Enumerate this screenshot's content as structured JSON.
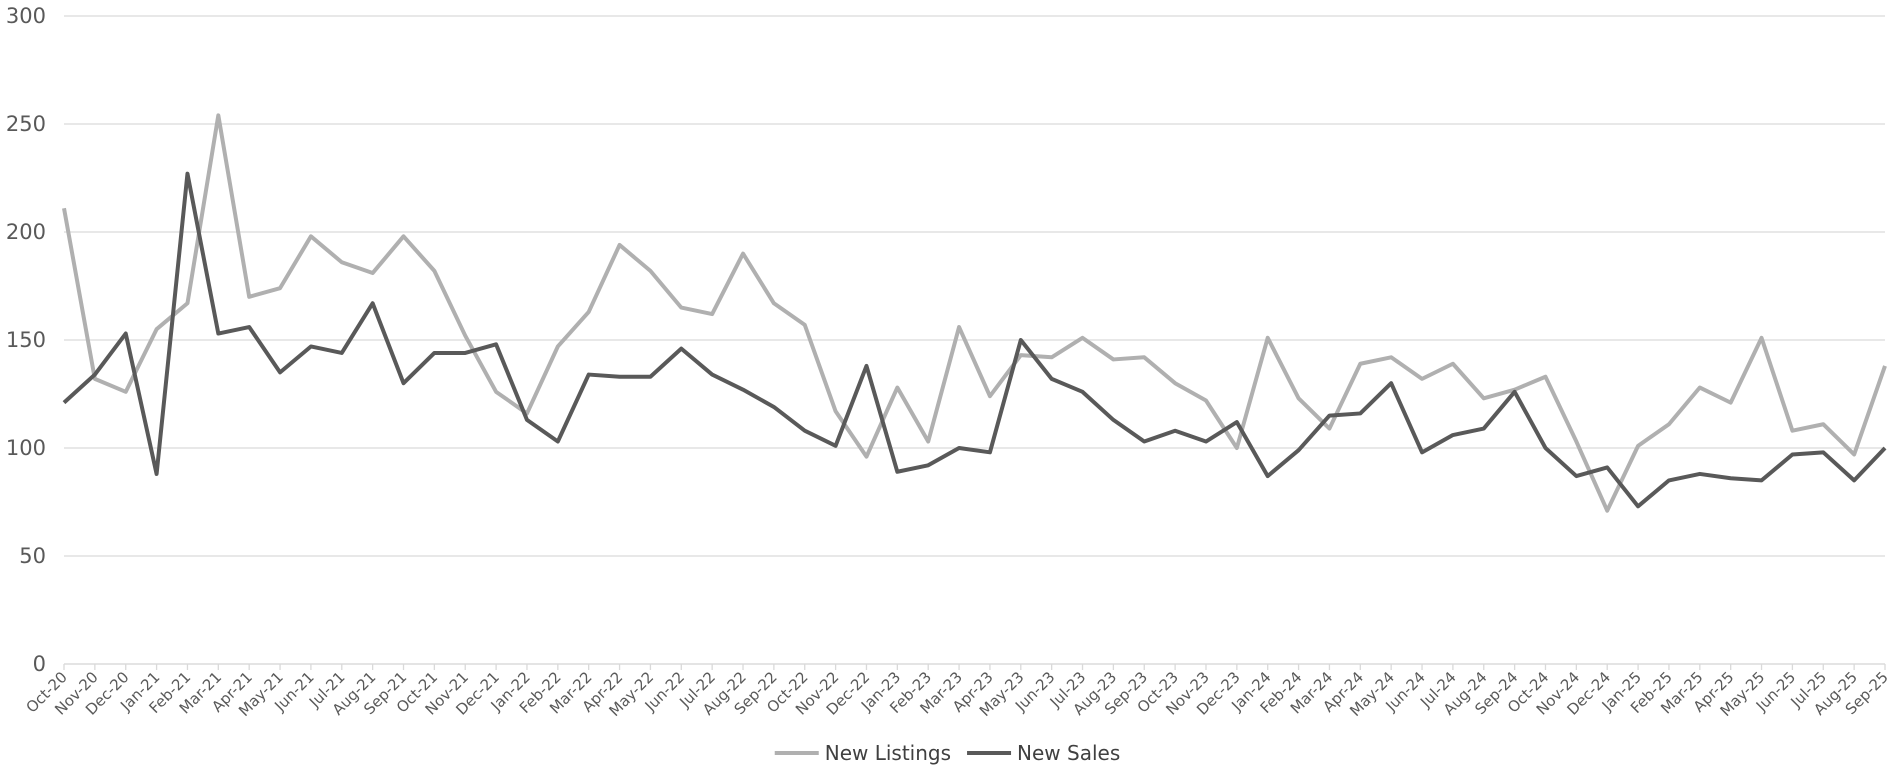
{
  "chart_data": {
    "type": "line",
    "categories": [
      "Oct-20",
      "Nov-20",
      "Dec-20",
      "Jan-21",
      "Feb-21",
      "Mar-21",
      "Apr-21",
      "May-21",
      "Jun-21",
      "Jul-21",
      "Aug-21",
      "Sep-21",
      "Oct-21",
      "Nov-21",
      "Dec-21",
      "Jan-22",
      "Feb-22",
      "Mar-22",
      "Apr-22",
      "May-22",
      "Jun-22",
      "Jul-22",
      "Aug-22",
      "Sep-22",
      "Oct-22",
      "Nov-22",
      "Dec-22",
      "Jan-23",
      "Feb-23",
      "Mar-23",
      "Apr-23",
      "May-23",
      "Jun-23",
      "Jul-23",
      "Aug-23",
      "Sep-23",
      "Oct-23",
      "Nov-23",
      "Dec-23",
      "Jan-24",
      "Feb-24",
      "Mar-24",
      "Apr-24",
      "May-24",
      "Jun-24",
      "Jul-24",
      "Aug-24",
      "Sep-24",
      "Oct-24",
      "Nov-24",
      "Dec-24",
      "Jan-25",
      "Feb-25",
      "Mar-25",
      "Apr-25",
      "May-25",
      "Jun-25",
      "Jul-25",
      "Aug-25",
      "Sep-25"
    ],
    "series": [
      {
        "name": "New Listings",
        "color": "#b0b0b0",
        "values": [
          211,
          132,
          126,
          155,
          167,
          254,
          170,
          174,
          198,
          186,
          181,
          198,
          182,
          152,
          126,
          116,
          147,
          163,
          194,
          182,
          165,
          162,
          190,
          167,
          157,
          117,
          96,
          128,
          103,
          156,
          124,
          143,
          142,
          151,
          141,
          142,
          130,
          122,
          100,
          151,
          123,
          109,
          139,
          142,
          132,
          139,
          123,
          127,
          133,
          103,
          71,
          101,
          111,
          128,
          121,
          151,
          108,
          111,
          97,
          138
        ]
      },
      {
        "name": "New Sales",
        "color": "#595959",
        "values": [
          121,
          134,
          153,
          88,
          227,
          153,
          156,
          135,
          147,
          144,
          167,
          130,
          144,
          144,
          148,
          113,
          103,
          134,
          133,
          133,
          146,
          134,
          127,
          119,
          108,
          101,
          138,
          89,
          92,
          100,
          98,
          150,
          132,
          126,
          113,
          103,
          108,
          103,
          112,
          87,
          99,
          115,
          116,
          130,
          98,
          106,
          109,
          126,
          100,
          87,
          91,
          73,
          85,
          88,
          86,
          85,
          97,
          98,
          85,
          100
        ]
      }
    ],
    "ylim": [
      0,
      300
    ],
    "yticks": [
      0,
      50,
      100,
      150,
      200,
      250,
      300
    ],
    "grid": true,
    "legend": "bottom"
  }
}
